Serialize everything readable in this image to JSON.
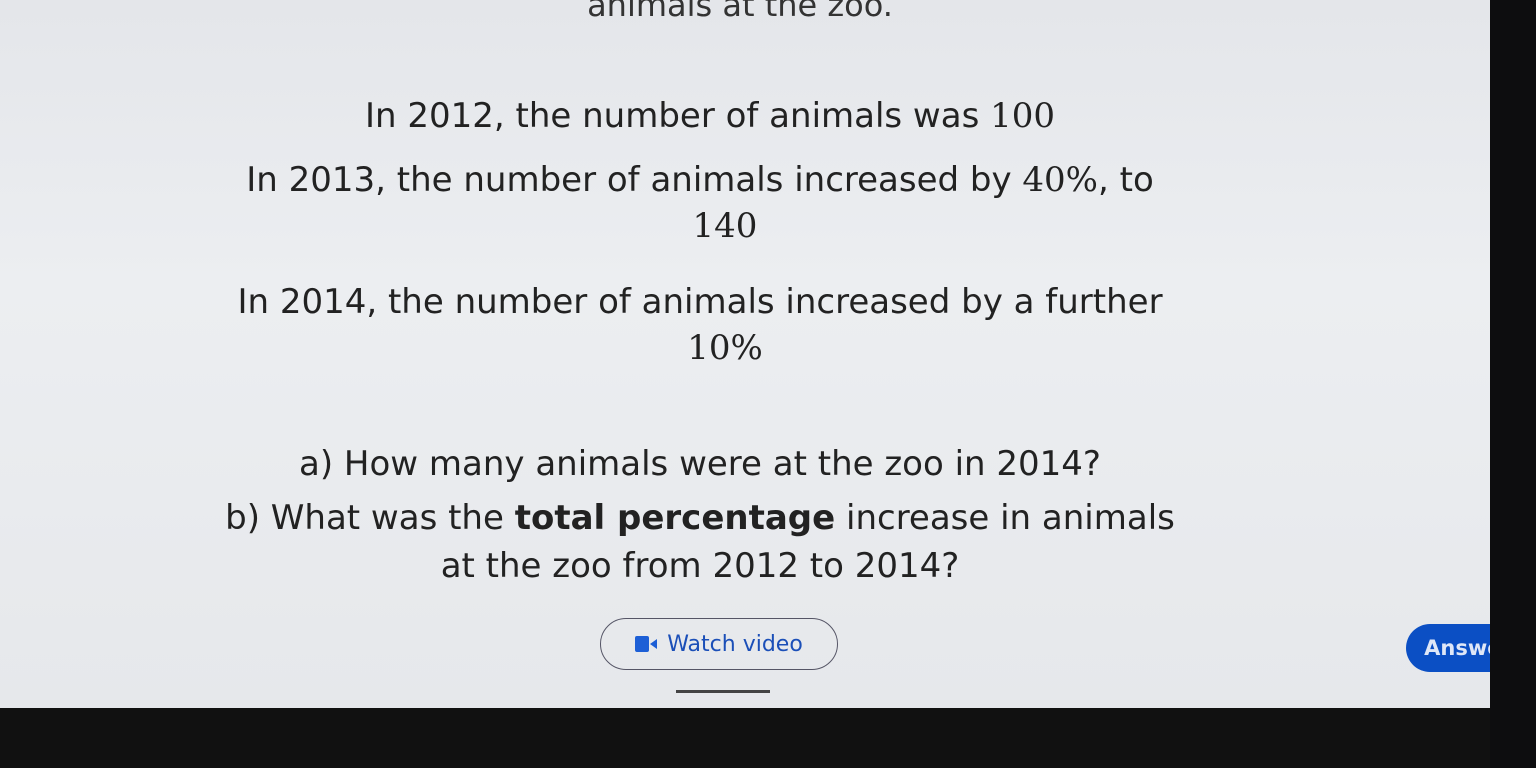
{
  "question": {
    "intro_fragment": "animals at the zoo.",
    "line1": "In 2012, the number of animals was",
    "line1_value": "100",
    "line2": "In 2013, the number of animals increased by",
    "line2_pct": "40%",
    "line2_end": ", to",
    "line3_value": "140",
    "line4": "In 2014, the number of animals increased by a further",
    "line5_pct": "10%",
    "part_a": "a) How many animals were at the zoo in 2014?",
    "part_b_pre": "b) What was the",
    "part_b_bold": "total percentage",
    "part_b_post": "increase in animals",
    "part_b_line2": "at the zoo from 2012 to 2014?"
  },
  "buttons": {
    "watch_video": "Watch video",
    "watch_icon": "video-camera-icon",
    "answer": "Answer"
  },
  "colors": {
    "accent": "#0b4fc4",
    "link": "#1b4fb8"
  }
}
